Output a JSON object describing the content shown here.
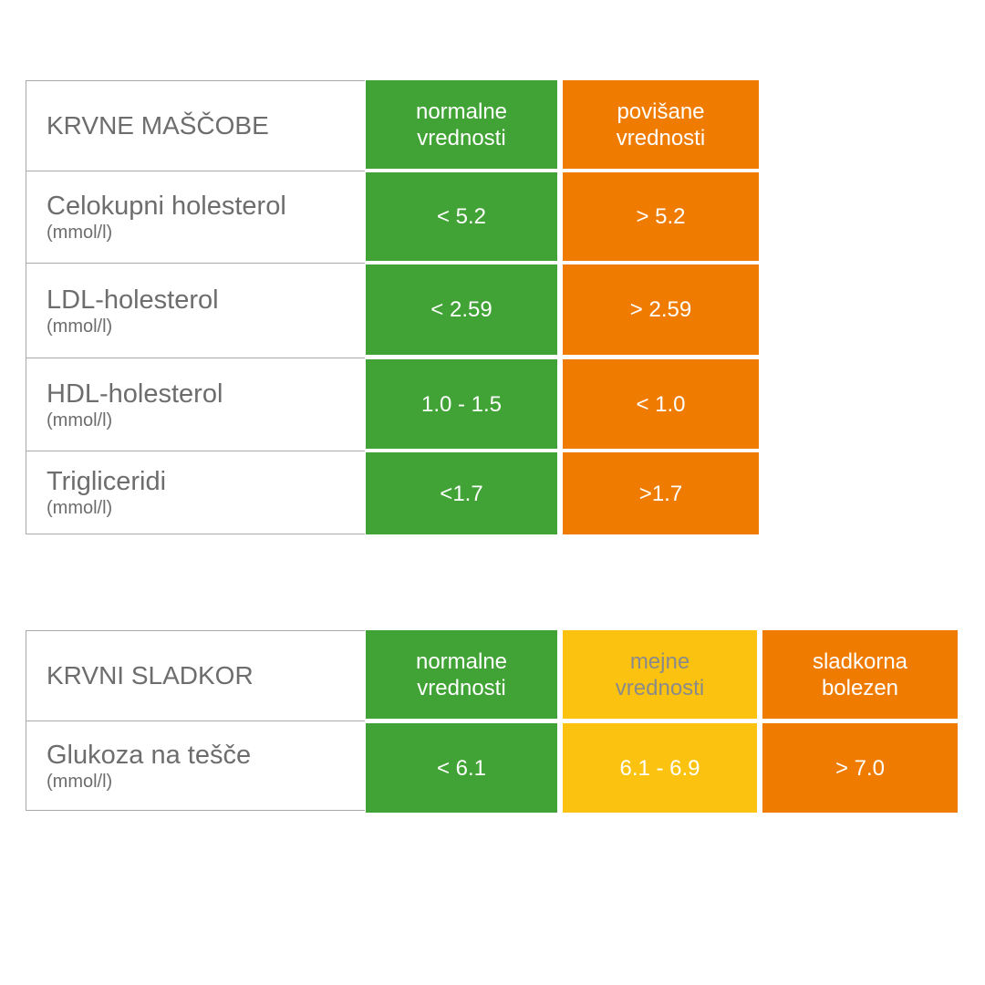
{
  "lipids": {
    "title": "KRVNE MAŠČOBE",
    "headers": [
      "normalne vrednosti",
      "povišane vrednosti"
    ],
    "rows": [
      {
        "name": "Celokupni holesterol",
        "unit": "(mmol/l)",
        "normal": "< 5.2",
        "high": "> 5.2"
      },
      {
        "name": "LDL-holesterol",
        "unit": "(mmol/l)",
        "normal": "< 2.59",
        "high": "> 2.59"
      },
      {
        "name": "HDL-holesterol",
        "unit": "(mmol/l)",
        "normal": "1.0 - 1.5",
        "high": "< 1.0"
      },
      {
        "name": "Trigliceridi",
        "unit": "(mmol/l)",
        "normal": "<1.7",
        "high": ">1.7"
      }
    ]
  },
  "sugar": {
    "title": "KRVNI SLADKOR",
    "headers": [
      "normalne vrednosti",
      "mejne vrednosti",
      "sladkorna bolezen"
    ],
    "rows": [
      {
        "name": "Glukoza na tešče",
        "unit": "(mmol/l)",
        "normal": "< 6.1",
        "border": "6.1 - 6.9",
        "diabetes": "> 7.0"
      }
    ]
  },
  "colors": {
    "green": "#41a335",
    "orange": "#ef7c00",
    "yellow": "#fbc30f",
    "text_gray": "#6d6d6d"
  }
}
